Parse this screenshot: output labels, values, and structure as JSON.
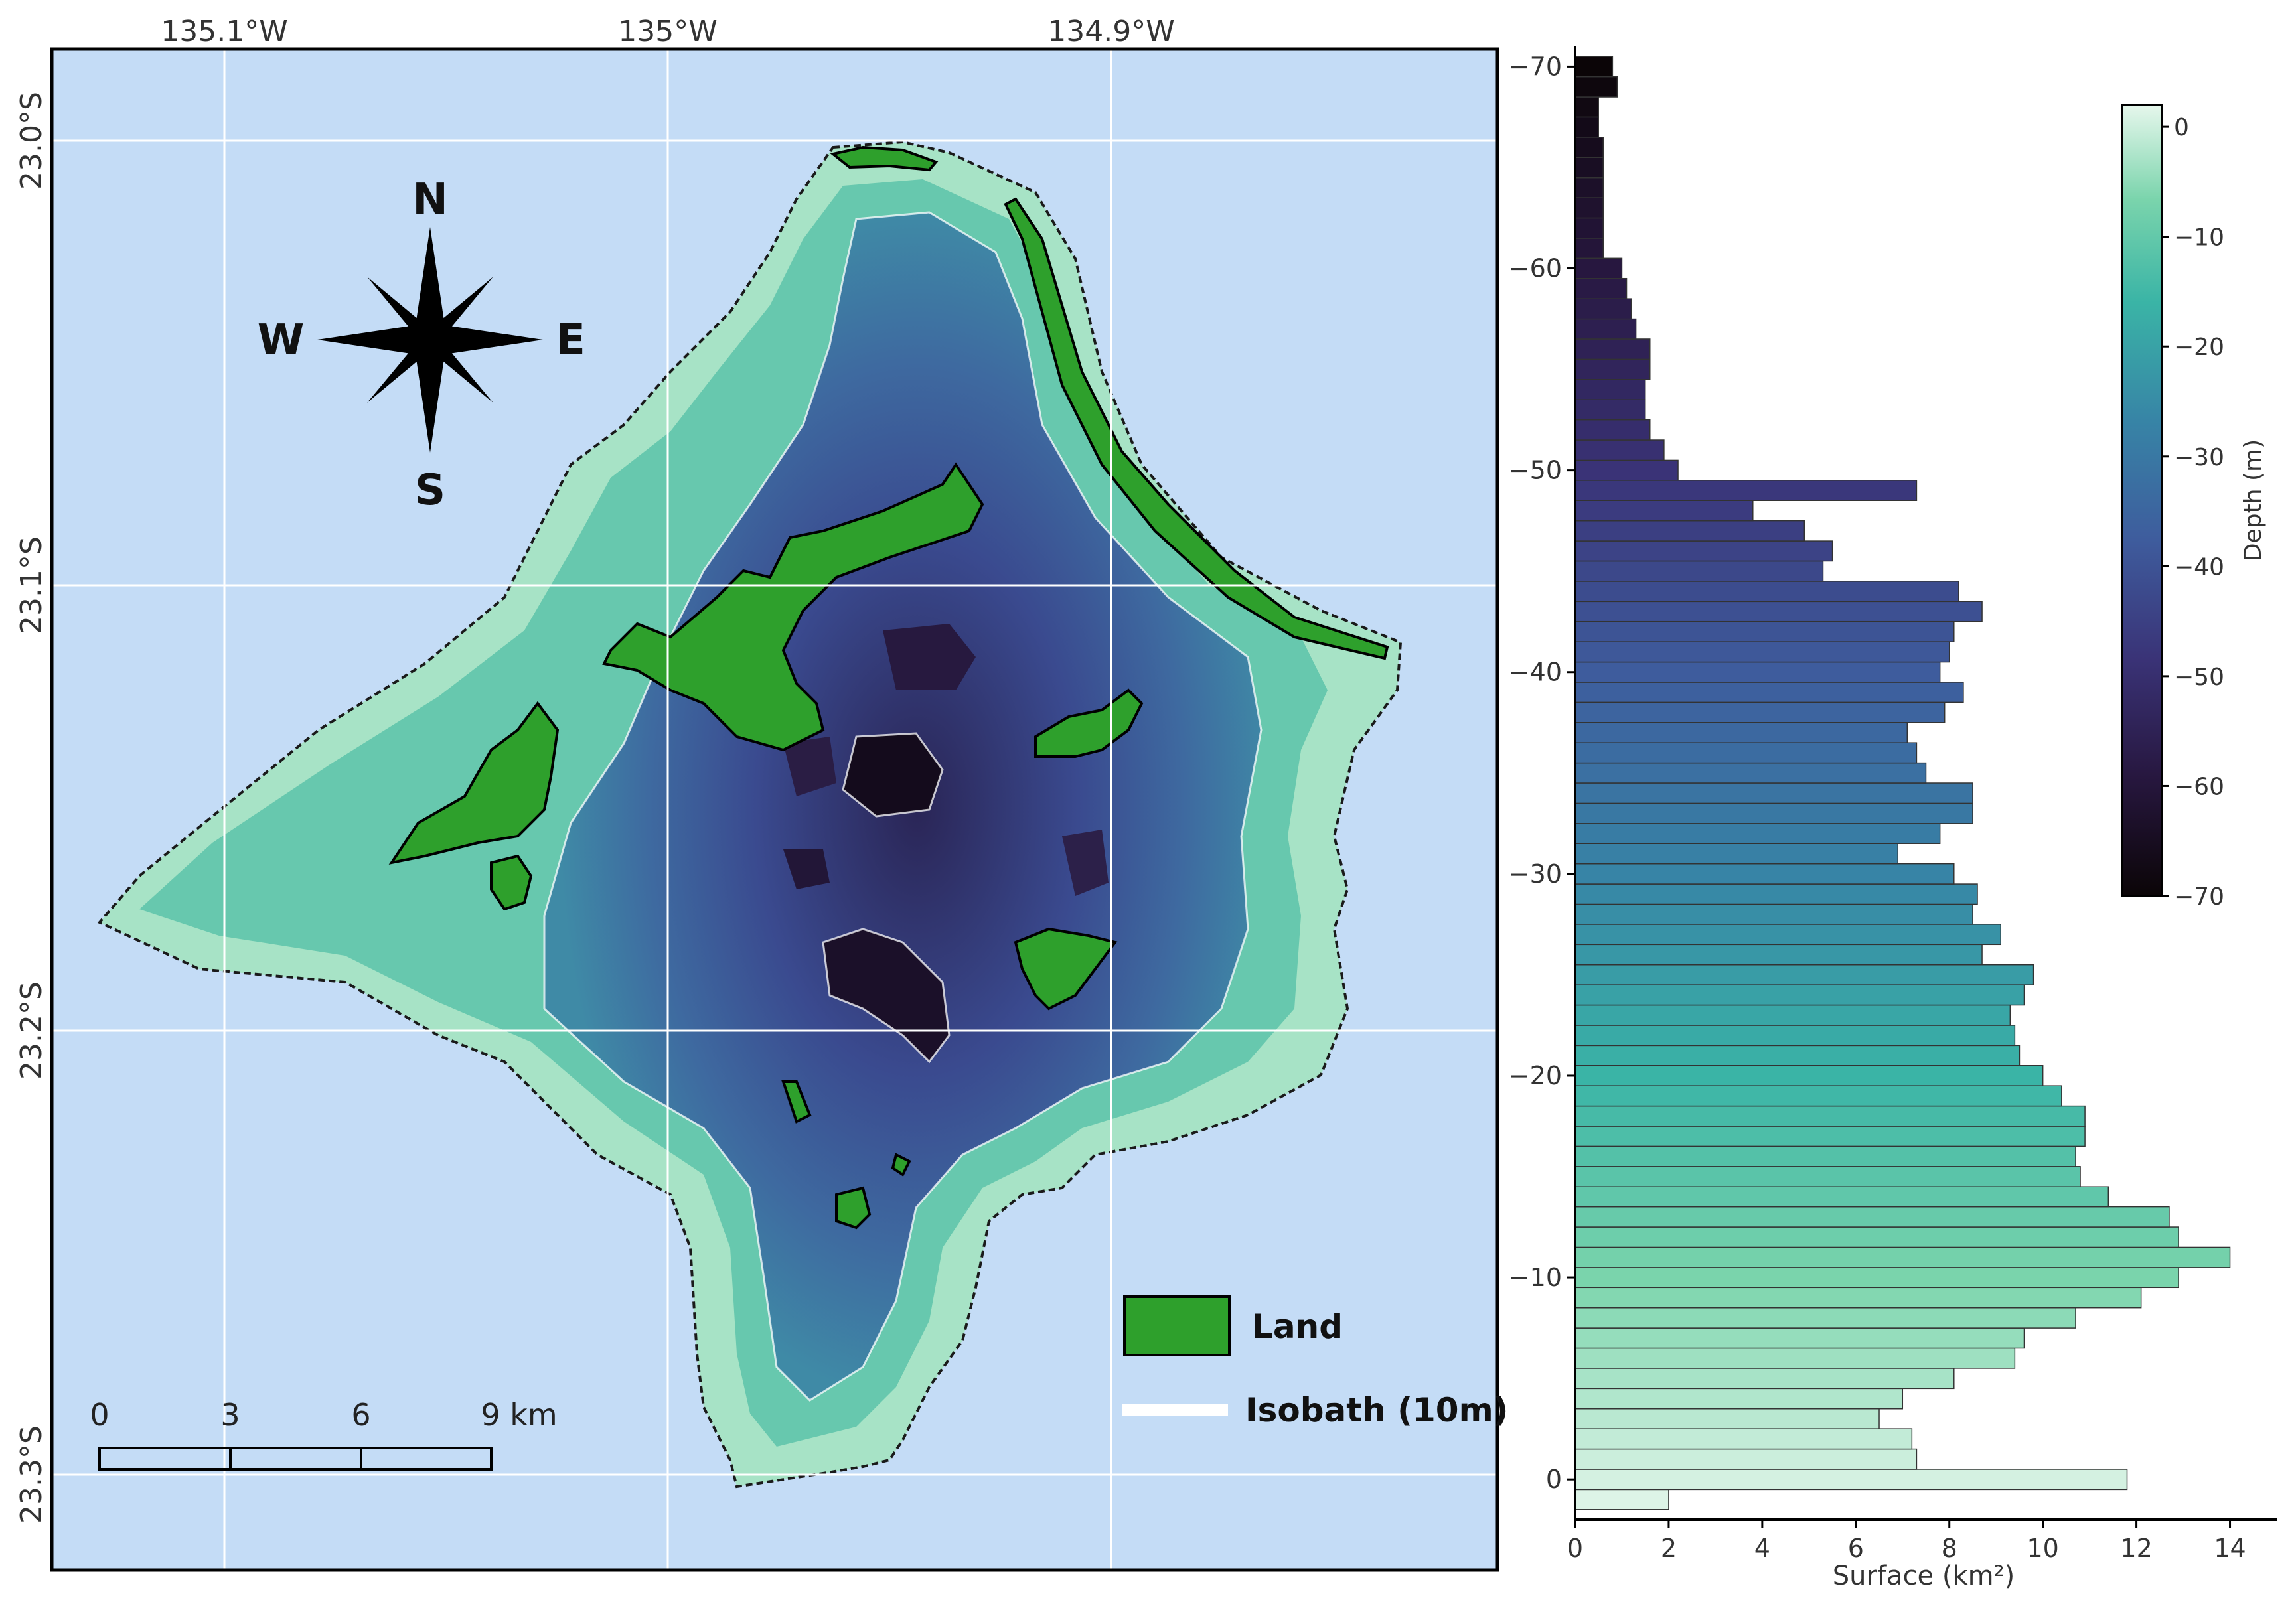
{
  "map": {
    "lon_ticks": [
      "135.1°W",
      "135°W",
      "134.9°W"
    ],
    "lat_ticks": [
      "23.0°S",
      "23.1°S",
      "23.2°S",
      "23.3°S"
    ],
    "compass": {
      "n": "N",
      "s": "S",
      "e": "E",
      "w": "W"
    },
    "scale_bar": {
      "ticks": [
        "0",
        "3",
        "6",
        "9 km"
      ]
    },
    "legend": {
      "land": "Land",
      "isobath": "Isobath (10m)"
    },
    "colors": {
      "ocean": "#c4dcf6",
      "land": "#2ea02c",
      "isobath": "#ffffff"
    }
  },
  "chart_data": {
    "type": "bar",
    "orientation": "horizontal",
    "xlabel": "Surface (km²)",
    "ylabel": "",
    "xlim": [
      0,
      15
    ],
    "ylim": [
      2,
      -71
    ],
    "x_ticks": [
      "0",
      "2",
      "4",
      "6",
      "8",
      "10",
      "12",
      "14"
    ],
    "y_ticks": [
      "−70",
      "−60",
      "−50",
      "−40",
      "−30",
      "−20",
      "−10",
      "0"
    ],
    "depths": [
      1,
      0,
      -1,
      -2,
      -3,
      -4,
      -5,
      -6,
      -7,
      -8,
      -9,
      -10,
      -11,
      -12,
      -13,
      -14,
      -15,
      -16,
      -17,
      -18,
      -19,
      -20,
      -21,
      -22,
      -23,
      -24,
      -25,
      -26,
      -27,
      -28,
      -29,
      -30,
      -31,
      -32,
      -33,
      -34,
      -35,
      -36,
      -37,
      -38,
      -39,
      -40,
      -41,
      -42,
      -43,
      -44,
      -45,
      -46,
      -47,
      -48,
      -49,
      -50,
      -51,
      -52,
      -53,
      -54,
      -55,
      -56,
      -57,
      -58,
      -59,
      -60,
      -61,
      -62,
      -63,
      -64,
      -65,
      -66,
      -67,
      -68,
      -69,
      -70
    ],
    "values": [
      2.0,
      11.8,
      7.3,
      7.2,
      6.5,
      7.0,
      8.1,
      9.4,
      9.6,
      10.7,
      12.1,
      12.9,
      14.0,
      12.9,
      12.7,
      11.4,
      10.8,
      10.7,
      10.9,
      10.9,
      10.4,
      10.0,
      9.5,
      9.4,
      9.3,
      9.6,
      9.8,
      8.7,
      9.1,
      8.5,
      8.6,
      8.1,
      6.9,
      7.8,
      8.5,
      8.5,
      7.5,
      7.3,
      7.1,
      7.9,
      8.3,
      7.8,
      8.0,
      8.1,
      8.7,
      8.2,
      5.3,
      5.5,
      4.9,
      3.8,
      7.3,
      2.2,
      1.9,
      1.6,
      1.5,
      1.5,
      1.6,
      1.6,
      1.3,
      1.2,
      1.1,
      1.0,
      0.6,
      0.6,
      0.6,
      0.6,
      0.6,
      0.6,
      0.5,
      0.5,
      0.9,
      0.8
    ],
    "colorbar": {
      "label": "Depth (m)",
      "ticks": [
        "0",
        "−10",
        "−20",
        "−30",
        "−40",
        "−50",
        "−60",
        "−70"
      ],
      "range": [
        -70,
        2
      ]
    }
  }
}
